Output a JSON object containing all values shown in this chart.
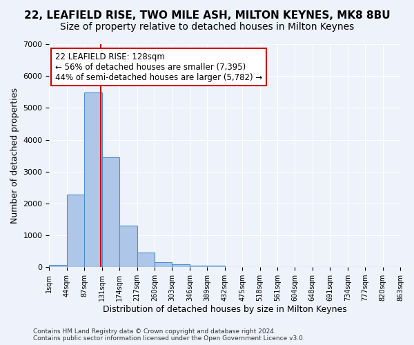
{
  "title": "22, LEAFIELD RISE, TWO MILE ASH, MILTON KEYNES, MK8 8BU",
  "subtitle": "Size of property relative to detached houses in Milton Keynes",
  "xlabel": "Distribution of detached houses by size in Milton Keynes",
  "ylabel": "Number of detached properties",
  "footer_line1": "Contains HM Land Registry data © Crown copyright and database right 2024.",
  "footer_line2": "Contains public sector information licensed under the Open Government Licence v3.0.",
  "bar_values": [
    80,
    2280,
    5480,
    3450,
    1310,
    470,
    160,
    90,
    55,
    40,
    0,
    0,
    0,
    0,
    0,
    0,
    0,
    0,
    0,
    0
  ],
  "bin_labels": [
    "1sqm",
    "44sqm",
    "87sqm",
    "131sqm",
    "174sqm",
    "217sqm",
    "260sqm",
    "303sqm",
    "346sqm",
    "389sqm",
    "432sqm",
    "475sqm",
    "518sqm",
    "561sqm",
    "604sqm",
    "648sqm",
    "691sqm",
    "734sqm",
    "777sqm",
    "820sqm",
    "863sqm"
  ],
  "bar_color": "#aec6e8",
  "bar_edge_color": "#4a90d9",
  "property_line_bin_index": 2.93,
  "annotation_text": "22 LEAFIELD RISE: 128sqm\n← 56% of detached houses are smaller (7,395)\n44% of semi-detached houses are larger (5,782) →",
  "annotation_box_color": "#ffffff",
  "annotation_box_edge": "#cc0000",
  "vline_color": "#cc0000",
  "ylim": [
    0,
    7000
  ],
  "background_color": "#eef2fa",
  "grid_color": "#ffffff",
  "title_fontsize": 11,
  "subtitle_fontsize": 10,
  "annotation_fontsize": 8.5
}
